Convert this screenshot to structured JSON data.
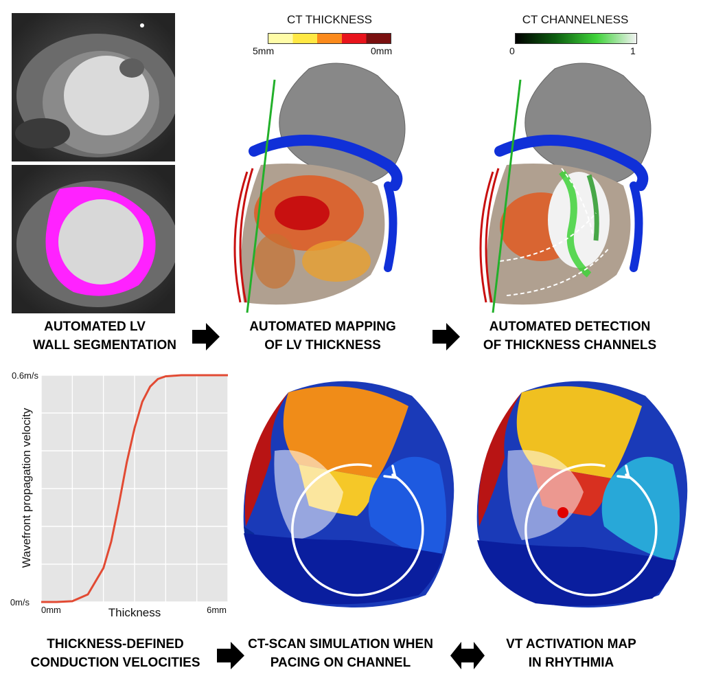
{
  "colorbars": {
    "thickness": {
      "title": "CT THICKNESS",
      "min_label": "5mm",
      "max_label": "0mm",
      "colors": [
        "#fffca8",
        "#ffe844",
        "#fb8a1c",
        "#e8141c",
        "#7a1010"
      ]
    },
    "channelness": {
      "title": "CT CHANNELNESS",
      "min_label": "0",
      "max_label": "1",
      "gradient": [
        "#000000",
        "#0d5e10",
        "#3fd23a",
        "#f2f2f2"
      ]
    }
  },
  "captions": {
    "segmentation": [
      "AUTOMATED LV",
      "WALL SEGMENTATION"
    ],
    "mapping": [
      "AUTOMATED MAPPING",
      "OF LV THICKNESS"
    ],
    "detection": [
      "AUTOMATED DETECTION",
      "OF THICKNESS CHANNELS"
    ],
    "velocities": [
      "THICKNESS-DEFINED",
      "CONDUCTION VELOCITIES"
    ],
    "simulation": [
      "CT-SCAN SIMULATION WHEN",
      "PACING ON CHANNEL"
    ],
    "activation": [
      "VT ACTIVATION MAP",
      "IN RHYTHMIA"
    ]
  },
  "colors": {
    "segmentation": "#ff22ff",
    "curve": "#e24a33",
    "plot_bg": "#e5e5e5",
    "vessel_blue": "#1030d8",
    "vessel_red": "#c81010",
    "guide_green": "#22b02a"
  },
  "chart_data": {
    "type": "line",
    "title": "",
    "xlabel": "Thickness",
    "ylabel": "Wavefront propagation velocity",
    "x_ticks": [
      "0mm",
      "6mm"
    ],
    "y_ticks": [
      "0m/s",
      "0.6m/s"
    ],
    "xlim": [
      0,
      6
    ],
    "ylim": [
      0,
      0.6
    ],
    "grid": true,
    "series": [
      {
        "x": [
          0,
          0.5,
          1.0,
          1.5,
          2.0,
          2.25,
          2.5,
          2.75,
          3.0,
          3.25,
          3.5,
          3.75,
          4.0,
          4.5,
          5.0,
          5.5,
          6.0
        ],
        "y": [
          0,
          0,
          0.002,
          0.02,
          0.09,
          0.16,
          0.26,
          0.37,
          0.46,
          0.53,
          0.57,
          0.59,
          0.597,
          0.6,
          0.6,
          0.6,
          0.6
        ]
      }
    ]
  }
}
